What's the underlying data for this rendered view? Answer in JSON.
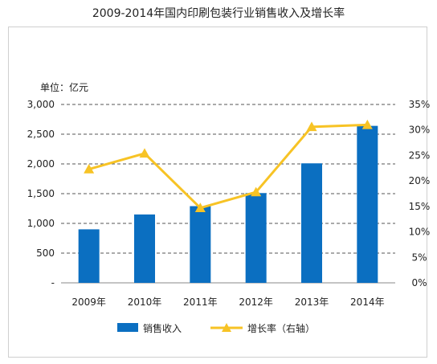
{
  "title": "2009-2014年国内印刷包装行业销售收入及增长率",
  "unit_label": "单位：亿元",
  "colors": {
    "bar": "#0b6fc1",
    "line": "#f7c325",
    "grid": "#555555",
    "frame": "#cfcfcf"
  },
  "chart_data": {
    "type": "bar+line",
    "title": "2009-2014年国内印刷包装行业销售收入及增长率",
    "unit": "单位：亿元",
    "categories": [
      "2009年",
      "2010年",
      "2011年",
      "2012年",
      "2013年",
      "2014年"
    ],
    "series": [
      {
        "name": "销售收入",
        "type": "bar",
        "axis": "left",
        "values": [
          900,
          1150,
          1290,
          1510,
          2010,
          2640
        ]
      },
      {
        "name": "增长率（右轴）",
        "type": "line",
        "axis": "right",
        "values": [
          22.3,
          25.4,
          14.7,
          17.8,
          30.6,
          31.0
        ]
      }
    ],
    "left_axis": {
      "min": 0,
      "max": 3000,
      "ticks": [
        "-",
        "500",
        "1,000",
        "1,500",
        "2,000",
        "2,500",
        "3,000"
      ]
    },
    "right_axis": {
      "min": 0,
      "max": 35,
      "ticks": [
        "0%",
        "5%",
        "10%",
        "15%",
        "20%",
        "25%",
        "30%",
        "35%"
      ]
    },
    "grid": "dashed horizontal",
    "legend": "bottom"
  }
}
